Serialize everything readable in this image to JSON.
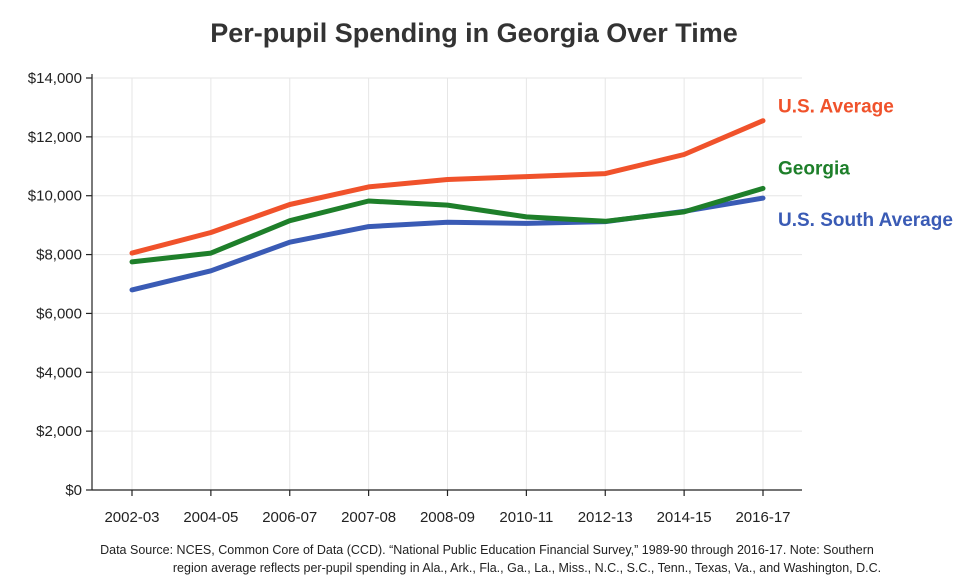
{
  "chart_data": {
    "type": "line",
    "title": "Per-pupil Spending in Georgia Over Time",
    "xlabel": "",
    "ylabel": "",
    "categories": [
      "2002-03",
      "2004-05",
      "2006-07",
      "2007-08",
      "2008-09",
      "2010-11",
      "2012-13",
      "2014-15",
      "2016-17"
    ],
    "ylim": [
      0,
      14000
    ],
    "yticks": [
      0,
      2000,
      4000,
      6000,
      8000,
      10000,
      12000,
      14000
    ],
    "ytick_labels": [
      "$0",
      "$2,000",
      "$4,000",
      "$6,000",
      "$8,000",
      "$10,000",
      "$12,000",
      "$14,000"
    ],
    "grid": true,
    "legend": "direct labels at line ends",
    "series": [
      {
        "name": "U.S. Average",
        "color": "#f0522b",
        "values": [
          8050,
          8750,
          9700,
          10300,
          10550,
          10650,
          10750,
          11400,
          12550
        ]
      },
      {
        "name": "Georgia",
        "color": "#1e7f2a",
        "values": [
          7750,
          8050,
          9150,
          9820,
          9680,
          9280,
          9130,
          9450,
          10250
        ]
      },
      {
        "name": "U.S. South Average",
        "color": "#3a5bb5",
        "values": [
          6800,
          7450,
          8420,
          8950,
          9100,
          9060,
          9120,
          9470,
          9920
        ]
      }
    ]
  },
  "footnote": {
    "line1": "Data Source: NCES, Common Core of Data (CCD). “National Public Education Financial Survey,” 1989-90 through 2016-17. Note: Southern",
    "line2": "region average reflects per-pupil spending in Ala., Ark., Fla., Ga., La., Miss., N.C., S.C., Tenn., Texas, Va., and Washington, D.C."
  }
}
